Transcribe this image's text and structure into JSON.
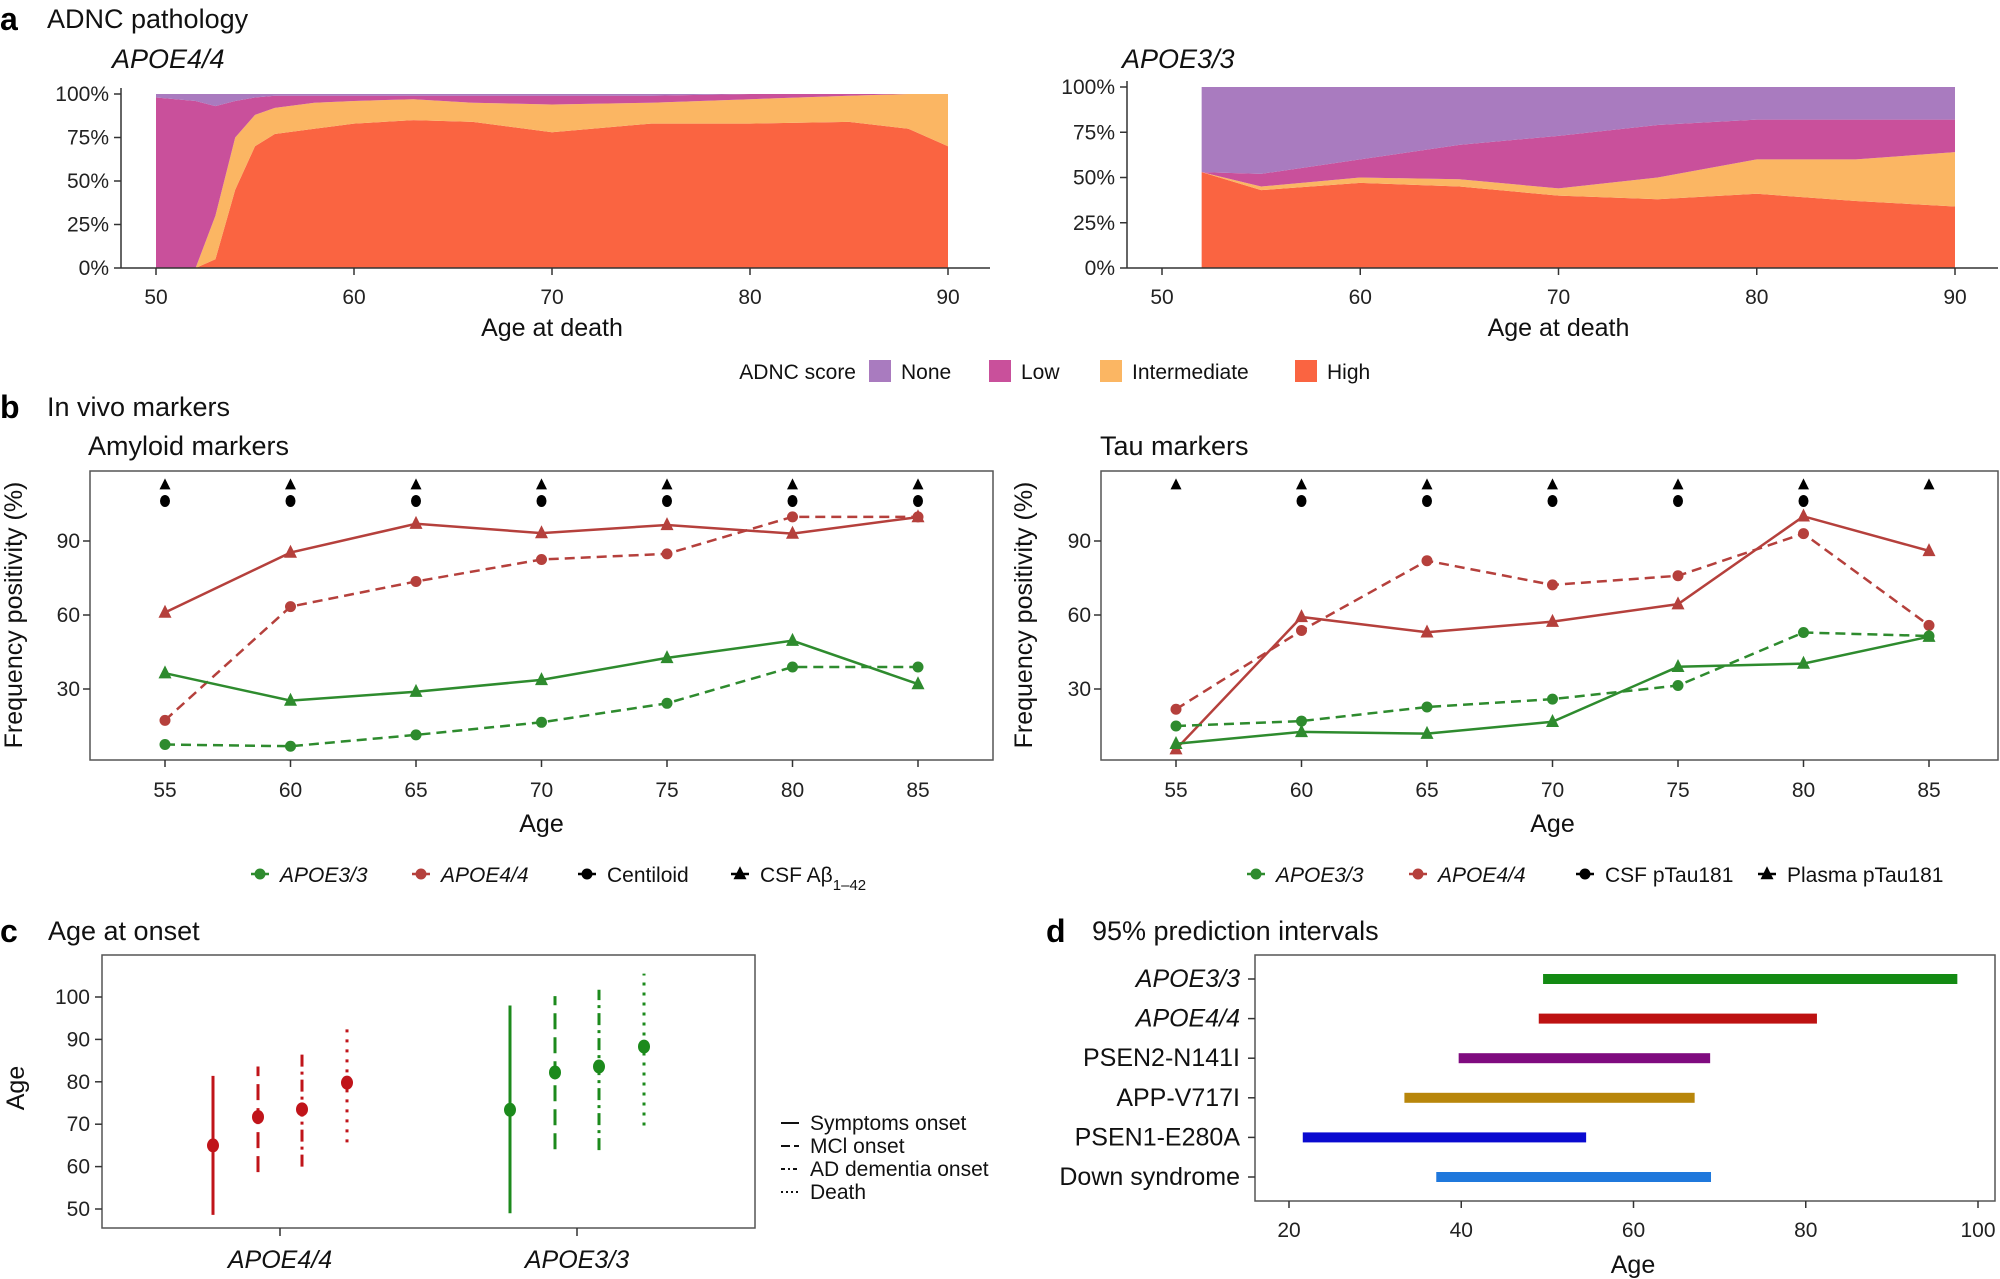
{
  "colors": {
    "none": "#a97bbf",
    "low": "#c9509b",
    "intermediate": "#fbb663",
    "high": "#fa6441",
    "apoe33": "#2e8b2e",
    "apoe44": "#b5403c",
    "marker": "#000000",
    "c_apoe44": "#c0141a",
    "c_apoe33": "#1c8a1c"
  },
  "chart_data": [
    {
      "id": "a-left",
      "panel_letter": "a",
      "panel_title": "ADNC pathology",
      "type": "area",
      "stacked": true,
      "subtitle": "APOE4/4",
      "xlabel": "Age at death",
      "xlim": [
        50,
        90
      ],
      "ylim": [
        0,
        100
      ],
      "xticks": [
        50,
        60,
        70,
        80,
        90
      ],
      "yticks": [
        "0%",
        "25%",
        "50%",
        "75%",
        "100%"
      ],
      "x": [
        50,
        51,
        52,
        53,
        54,
        55,
        56,
        58,
        60,
        63,
        66,
        70,
        75,
        80,
        85,
        88,
        90
      ],
      "series": [
        {
          "name": "High",
          "values": [
            0,
            0,
            0,
            5,
            45,
            70,
            77,
            80,
            83,
            85,
            84,
            78,
            83,
            83,
            84,
            80,
            70
          ]
        },
        {
          "name": "Intermediate",
          "values": [
            0,
            0,
            0,
            25,
            30,
            18,
            15,
            15,
            13,
            12,
            11,
            16,
            12,
            14,
            15,
            20,
            30
          ]
        },
        {
          "name": "Low",
          "values": [
            98,
            97,
            96,
            63,
            21,
            10,
            7,
            4,
            3,
            2,
            4,
            5,
            4,
            3,
            1,
            0,
            0
          ]
        },
        {
          "name": "None",
          "values": [
            2,
            3,
            4,
            7,
            4,
            2,
            1,
            1,
            1,
            1,
            1,
            1,
            1,
            0,
            0,
            0,
            0
          ]
        }
      ]
    },
    {
      "id": "a-right",
      "type": "area",
      "stacked": true,
      "subtitle": "APOE3/3",
      "xlabel": "Age at death",
      "xlim": [
        50,
        90
      ],
      "ylim": [
        0,
        100
      ],
      "xticks": [
        50,
        60,
        70,
        80,
        90
      ],
      "yticks": [
        "0%",
        "25%",
        "50%",
        "75%",
        "100%"
      ],
      "x": [
        52,
        55,
        60,
        65,
        70,
        75,
        80,
        85,
        90
      ],
      "series": [
        {
          "name": "High",
          "values": [
            53,
            43,
            47,
            45,
            40,
            38,
            41,
            37,
            34
          ]
        },
        {
          "name": "Intermediate",
          "values": [
            0,
            2,
            3,
            4,
            4,
            12,
            19,
            23,
            30
          ]
        },
        {
          "name": "Low",
          "values": [
            0,
            7,
            10,
            19,
            29,
            29,
            22,
            22,
            18
          ]
        },
        {
          "name": "None",
          "values": [
            47,
            48,
            40,
            32,
            27,
            21,
            18,
            18,
            18
          ]
        }
      ]
    },
    {
      "id": "b-left",
      "panel_letter": "b",
      "panel_title": "In vivo markers",
      "type": "line",
      "subtitle": "Amyloid markers",
      "xlabel": "Age",
      "ylabel": "Frequency positivity (%)",
      "x": [
        55,
        60,
        65,
        70,
        75,
        80,
        85
      ],
      "yticks": [
        30,
        60,
        90
      ],
      "series": [
        {
          "group": "APOE4/4",
          "marker": "CSF Aβ1–42",
          "values": [
            61,
            85.3,
            97,
            93.2,
            96.5,
            93,
            99.7
          ]
        },
        {
          "group": "APOE4/4",
          "marker": "Centiloid",
          "values": [
            17.3,
            63.4,
            73.6,
            82.5,
            84.8,
            99.8,
            99.8
          ]
        },
        {
          "group": "APOE3/3",
          "marker": "CSF Aβ1–42",
          "values": [
            36.4,
            25.3,
            28.9,
            33.7,
            42.6,
            49.6,
            32
          ]
        },
        {
          "group": "APOE3/3",
          "marker": "Centiloid",
          "values": [
            7.5,
            6.8,
            11.4,
            16.5,
            24.2,
            38.9,
            38.9
          ]
        }
      ],
      "significance": {
        "triangle": [
          55,
          60,
          65,
          70,
          75,
          80,
          85
        ],
        "circle": [
          55,
          60,
          65,
          70,
          75,
          80,
          85
        ]
      },
      "legend": [
        {
          "label": "APOE3/3",
          "italic": true,
          "symbol": "circle",
          "color": "apoe33"
        },
        {
          "label": "APOE4/4",
          "italic": true,
          "symbol": "circle",
          "color": "apoe44"
        },
        {
          "label": "Centiloid",
          "symbol": "circle",
          "color": "marker"
        },
        {
          "label": "CSF Aβ",
          "sub": "1–42",
          "symbol": "triangle",
          "color": "marker"
        }
      ]
    },
    {
      "id": "b-right",
      "type": "line",
      "subtitle": "Tau markers",
      "xlabel": "Age",
      "ylabel": "Frequency positivity (%)",
      "x": [
        55,
        60,
        65,
        70,
        75,
        80,
        85
      ],
      "yticks": [
        30,
        60,
        90
      ],
      "series": [
        {
          "group": "APOE4/4",
          "marker": "Plasma pTau181",
          "values": [
            5.6,
            59.2,
            53,
            57.3,
            64.4,
            100,
            86
          ]
        },
        {
          "group": "APOE4/4",
          "marker": "CSF pTau181",
          "values": [
            21.8,
            53.7,
            82,
            72.2,
            75.9,
            93,
            55.8
          ]
        },
        {
          "group": "APOE3/3",
          "marker": "Plasma pTau181",
          "values": [
            7.8,
            12.6,
            11.9,
            16.7,
            39,
            40.3,
            51.2
          ]
        },
        {
          "group": "APOE3/3",
          "marker": "CSF pTau181",
          "values": [
            15,
            17,
            22.7,
            25.9,
            31.4,
            52.9,
            51.5
          ]
        }
      ],
      "significance": {
        "triangle": [
          55,
          60,
          65,
          70,
          75,
          80,
          85
        ],
        "circle": [
          60,
          65,
          70,
          75,
          80
        ]
      },
      "legend": [
        {
          "label": "APOE3/3",
          "italic": true,
          "symbol": "circle",
          "color": "apoe33"
        },
        {
          "label": "APOE4/4",
          "italic": true,
          "symbol": "circle",
          "color": "apoe44"
        },
        {
          "label": "CSF pTau181",
          "symbol": "circle",
          "color": "marker"
        },
        {
          "label": "Plasma pTau181",
          "symbol": "triangle",
          "color": "marker"
        }
      ]
    },
    {
      "id": "c",
      "panel_letter": "c",
      "panel_title": "Age at onset",
      "type": "errorbar",
      "ylabel": "Age",
      "ylim": [
        47,
        111
      ],
      "yticks": [
        50,
        60,
        70,
        80,
        90,
        100
      ],
      "categories": [
        "APOE4/4",
        "APOE3/3"
      ],
      "events": [
        "Symptoms onset",
        "MCI onset",
        "AD dementia onset",
        "Death"
      ],
      "series": [
        {
          "group": "APOE4/4",
          "color": "c_apoe44",
          "points": [
            {
              "event": "Symptoms onset",
              "value": 65,
              "low": 48.6,
              "high": 81.4
            },
            {
              "event": "MCI onset",
              "value": 71.7,
              "low": 58.7,
              "high": 83.6
            },
            {
              "event": "AD dementia onset",
              "value": 73.5,
              "low": 60,
              "high": 87.2
            },
            {
              "event": "Death",
              "value": 79.8,
              "low": 65.7,
              "high": 93.7
            }
          ]
        },
        {
          "group": "APOE3/3",
          "color": "c_apoe33",
          "points": [
            {
              "event": "Symptoms onset",
              "value": 73.4,
              "low": 49,
              "high": 98
            },
            {
              "event": "MCI onset",
              "value": 82.2,
              "low": 64.1,
              "high": 100.2
            },
            {
              "event": "AD dementia onset",
              "value": 83.6,
              "low": 63.9,
              "high": 101.7
            },
            {
              "event": "Death",
              "value": 88.3,
              "low": 69.7,
              "high": 105.5
            }
          ]
        }
      ],
      "legend": [
        "Symptoms onset",
        "MCl onset",
        "AD dementia onset",
        "Death"
      ]
    },
    {
      "id": "d",
      "panel_letter": "d",
      "panel_title": "95% prediction intervals",
      "type": "range-bar",
      "xlabel": "Age",
      "xticks": [
        20,
        40,
        60,
        80,
        100
      ],
      "bars": [
        {
          "label": "APOE3/3",
          "italic": true,
          "low": 49.5,
          "high": 97.6,
          "color": "#138a13"
        },
        {
          "label": "APOE4/4",
          "italic": true,
          "low": 49,
          "high": 81.3,
          "color": "#bd1212"
        },
        {
          "label": "PSEN2-N141I",
          "low": 39.7,
          "high": 68.9,
          "color": "#7f0b7f"
        },
        {
          "label": "APP-V717I",
          "low": 33.4,
          "high": 67.1,
          "color": "#b8860b"
        },
        {
          "label": "PSEN1-E280A",
          "low": 21.6,
          "high": 54.5,
          "color": "#0a0ad0"
        },
        {
          "label": "Down syndrome",
          "low": 37.1,
          "high": 69,
          "color": "#1f78dc"
        }
      ]
    }
  ],
  "adnc_legend": {
    "title": "ADNC score",
    "items": [
      "None",
      "Low",
      "Intermediate",
      "High"
    ]
  }
}
